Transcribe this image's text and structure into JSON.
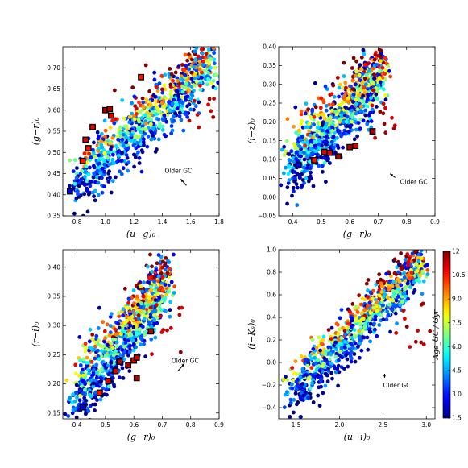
{
  "chart_data": [
    {
      "type": "scatter",
      "xlabel": "(u−g)₀",
      "ylabel": "(g−r)₀",
      "xlim": [
        0.7,
        1.8
      ],
      "ylim": [
        0.35,
        0.75
      ],
      "xticks": [
        "0.8",
        "1.0",
        "1.2",
        "1.4",
        "1.6",
        "1.8"
      ],
      "yticks": [
        "0.35",
        "0.40",
        "0.45",
        "0.50",
        "0.55",
        "0.60",
        "0.65",
        "0.70"
      ],
      "annotation": "Older GC",
      "arrow": {
        "from": [
          1.57,
          0.422
        ],
        "to": [
          1.53,
          0.437
        ]
      },
      "trend": {
        "x0": 0.78,
        "y0": 0.42,
        "x1": 1.75,
        "y1": 0.72,
        "spread": 0.035
      },
      "highlighted": [
        {
          "x": 0.75,
          "y": 0.408,
          "age": 2.5
        },
        {
          "x": 0.84,
          "y": 0.48,
          "age": 10.5
        },
        {
          "x": 0.88,
          "y": 0.51,
          "age": 10.5
        },
        {
          "x": 0.86,
          "y": 0.53,
          "age": 11.0
        },
        {
          "x": 0.91,
          "y": 0.56,
          "age": 11.0
        },
        {
          "x": 1.0,
          "y": 0.6,
          "age": 11.5
        },
        {
          "x": 1.03,
          "y": 0.603,
          "age": 11.5
        },
        {
          "x": 1.04,
          "y": 0.587,
          "age": 11.0
        },
        {
          "x": 1.25,
          "y": 0.678,
          "age": 10.5
        }
      ]
    },
    {
      "type": "scatter",
      "xlabel": "(g−r)₀",
      "ylabel": "(i−z)₀",
      "xlim": [
        0.35,
        0.9
      ],
      "ylim": [
        -0.05,
        0.4
      ],
      "xticks": [
        "0.4",
        "0.5",
        "0.6",
        "0.7",
        "0.8",
        "0.9"
      ],
      "yticks": [
        "−0.05",
        "0.00",
        "0.05",
        "0.10",
        "0.15",
        "0.20",
        "0.25",
        "0.30",
        "0.35",
        "0.40"
      ],
      "annotation": "Older GC",
      "arrow": {
        "from": [
          0.76,
          0.052
        ],
        "to": [
          0.742,
          0.062
        ]
      },
      "trend": {
        "x0": 0.38,
        "y0": 0.07,
        "x1": 0.72,
        "y1": 0.34,
        "spread": 0.045
      },
      "highlighted": [
        {
          "x": 0.42,
          "y": 0.085,
          "age": 2.5
        },
        {
          "x": 0.475,
          "y": 0.098,
          "age": 10.5
        },
        {
          "x": 0.51,
          "y": 0.12,
          "age": 11.0
        },
        {
          "x": 0.53,
          "y": 0.118,
          "age": 11.0
        },
        {
          "x": 0.56,
          "y": 0.108,
          "age": 11.5
        },
        {
          "x": 0.6,
          "y": 0.133,
          "age": 11.5
        },
        {
          "x": 0.62,
          "y": 0.136,
          "age": 11.0
        },
        {
          "x": 0.68,
          "y": 0.175,
          "age": 11.5
        }
      ]
    },
    {
      "type": "scatter",
      "xlabel": "(g−r)₀",
      "ylabel": "(r−i)₀",
      "xlim": [
        0.35,
        0.9
      ],
      "ylim": [
        0.14,
        0.43
      ],
      "xticks": [
        "0.4",
        "0.5",
        "0.6",
        "0.7",
        "0.8",
        "0.9"
      ],
      "yticks": [
        "0.15",
        "0.20",
        "0.25",
        "0.30",
        "0.35",
        "0.40"
      ],
      "annotation": "Older GC",
      "arrow": {
        "from": [
          0.755,
          0.222
        ],
        "to": [
          0.778,
          0.235
        ]
      },
      "trend": {
        "x0": 0.38,
        "y0": 0.17,
        "x1": 0.72,
        "y1": 0.38,
        "spread": 0.028
      },
      "highlighted": [
        {
          "x": 0.42,
          "y": 0.16,
          "age": 2.5
        },
        {
          "x": 0.48,
          "y": 0.185,
          "age": 10.5
        },
        {
          "x": 0.51,
          "y": 0.205,
          "age": 11.0
        },
        {
          "x": 0.535,
          "y": 0.222,
          "age": 11.0
        },
        {
          "x": 0.55,
          "y": 0.238,
          "age": 11.5
        },
        {
          "x": 0.58,
          "y": 0.232,
          "age": 11.5
        },
        {
          "x": 0.6,
          "y": 0.24,
          "age": 11.0
        },
        {
          "x": 0.61,
          "y": 0.245,
          "age": 11.0
        },
        {
          "x": 0.61,
          "y": 0.21,
          "age": 11.5
        },
        {
          "x": 0.66,
          "y": 0.29,
          "age": 11.5
        }
      ]
    },
    {
      "type": "scatter",
      "xlabel": "(u−i)₀",
      "ylabel": "(i−Kₛ)₀",
      "xlim": [
        1.3,
        3.1
      ],
      "ylim": [
        -0.5,
        1.0
      ],
      "xticks": [
        "1.5",
        "2.0",
        "2.5",
        "3.0"
      ],
      "yticks": [
        "−0.4",
        "−0.2",
        "0.0",
        "0.2",
        "0.4",
        "0.6",
        "0.8",
        "1.0"
      ],
      "annotation": "Older GC",
      "arrow": {
        "from": [
          2.52,
          -0.1
        ],
        "to": [
          2.52,
          -0.135
        ]
      },
      "trend": {
        "x0": 1.4,
        "y0": -0.3,
        "x1": 2.95,
        "y1": 0.88,
        "spread": 0.11
      },
      "highlighted": [],
      "colorbar": {
        "label": "Age_GC / Gyr",
        "ticks": [
          "1.5",
          "3.0",
          "4.5",
          "6.0",
          "7.5",
          "9.0",
          "10.5",
          "12"
        ],
        "range": [
          1.5,
          12
        ]
      }
    }
  ]
}
